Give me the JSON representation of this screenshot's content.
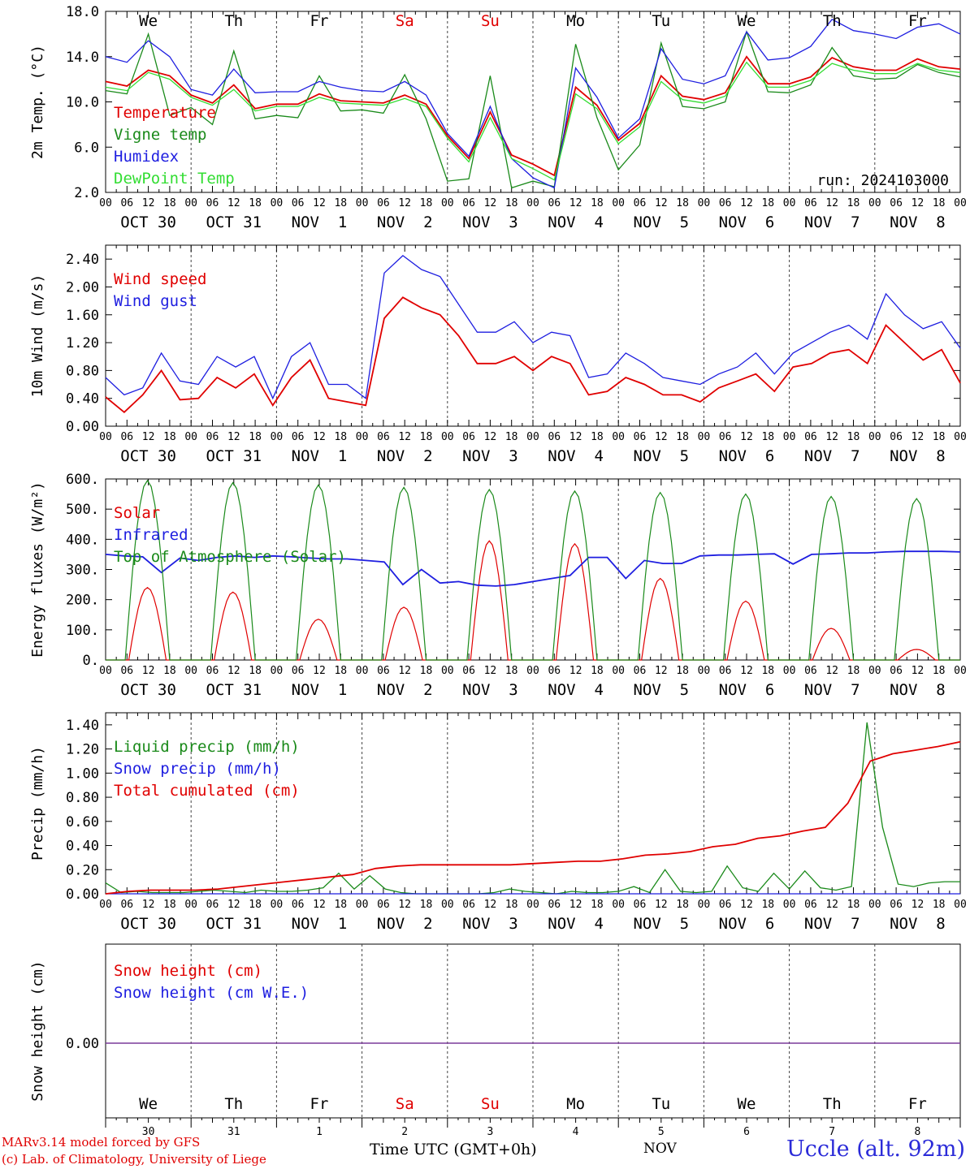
{
  "run_label": "run: 2024103000",
  "footer": {
    "model": "MARv3.14 model forced by GFS",
    "lab": "(c) Lab. of Climatology, University of Liege",
    "time_axis": "Time UTC (GMT+0h)",
    "month": "NOV",
    "station": "Uccle (alt. 92m)"
  },
  "weekdays": [
    "We",
    "Th",
    "Fr",
    "Sa",
    "Su",
    "Mo",
    "Tu",
    "We",
    "Th",
    "Fr"
  ],
  "weekend_flags": [
    false,
    false,
    false,
    true,
    true,
    false,
    false,
    false,
    false,
    false
  ],
  "day_numbers": [
    "30",
    "31",
    "1",
    "2",
    "3",
    "4",
    "5",
    "6",
    "7",
    "8"
  ],
  "date_labels": [
    "OCT 30",
    "OCT 31",
    "NOV  1",
    "NOV  2",
    "NOV  3",
    "NOV  4",
    "NOV  5",
    "NOV  6",
    "NOV  7",
    "NOV  8"
  ],
  "hour_ticks": [
    "00",
    "06",
    "12",
    "18"
  ],
  "hour_tick_end": "00",
  "colors": {
    "red": "#e00000",
    "green": "#1a8a1a",
    "blue": "#1e1ee0",
    "light_green": "#33dd33",
    "purple": "#7a3a9a",
    "grid": "#444444"
  },
  "chart_data": [
    {
      "type": "line",
      "ylabel": "2m Temp. (°C)",
      "ylim": [
        2,
        18
      ],
      "yticks": [
        "2.0",
        "6.0",
        "10.0",
        "14.0",
        "18.0"
      ],
      "x": "hours since Oct 30 00 UTC, every 6h",
      "legend_placement": "left",
      "series": [
        {
          "name": "Temperature",
          "color": "red",
          "values": [
            11.8,
            11.4,
            12.8,
            12.3,
            10.6,
            9.9,
            11.5,
            9.4,
            9.8,
            9.8,
            10.7,
            10.1,
            10.0,
            9.9,
            10.6,
            9.8,
            7.0,
            5.0,
            9.1,
            5.3,
            4.5,
            3.5,
            11.3,
            9.7,
            6.6,
            8.1,
            12.3,
            10.5,
            10.2,
            10.8,
            14.0,
            11.6,
            11.6,
            12.2,
            13.9,
            13.1,
            12.8,
            12.8,
            13.8,
            13.1,
            12.9
          ]
        },
        {
          "name": "Vigne temp",
          "color": "green",
          "values": [
            11.0,
            10.7,
            16.0,
            8.8,
            9.5,
            8.0,
            14.5,
            8.5,
            8.8,
            8.6,
            12.3,
            9.2,
            9.3,
            9.0,
            12.4,
            8.5,
            3.0,
            3.2,
            12.3,
            2.4,
            3.0,
            2.5,
            15.1,
            8.6,
            4.0,
            6.2,
            15.2,
            9.6,
            9.4,
            10.0,
            16.2,
            10.9,
            10.8,
            11.5,
            14.8,
            12.3,
            12.0,
            12.1,
            13.3,
            12.6,
            12.2
          ]
        },
        {
          "name": "Humidex",
          "color": "blue",
          "values": [
            14.0,
            13.5,
            15.4,
            14.0,
            11.1,
            10.6,
            12.9,
            10.8,
            10.9,
            10.9,
            11.8,
            11.3,
            11.0,
            10.9,
            11.8,
            10.6,
            7.2,
            5.2,
            9.6,
            5.0,
            3.3,
            2.4,
            13.0,
            10.4,
            6.8,
            8.5,
            14.7,
            12.0,
            11.6,
            12.3,
            16.2,
            13.7,
            13.9,
            14.9,
            17.3,
            16.3,
            16.0,
            15.6,
            16.6,
            16.9,
            16.0
          ]
        },
        {
          "name": "DewPoint Temp",
          "color": "light_green",
          "values": [
            11.3,
            11.0,
            12.6,
            12.0,
            10.4,
            9.7,
            11.1,
            9.2,
            9.6,
            9.6,
            10.4,
            9.9,
            9.8,
            9.7,
            10.3,
            9.6,
            6.8,
            4.7,
            8.6,
            5.0,
            4.1,
            3.1,
            10.7,
            9.4,
            6.3,
            7.8,
            11.8,
            10.2,
            9.9,
            10.5,
            13.5,
            11.3,
            11.3,
            11.9,
            13.4,
            12.8,
            12.5,
            12.5,
            13.4,
            12.8,
            12.6
          ]
        }
      ]
    },
    {
      "type": "line",
      "ylabel": "10m Wind (m/s)",
      "ylim": [
        0,
        2.6
      ],
      "yticks": [
        "0.00",
        "0.40",
        "0.80",
        "1.20",
        "1.60",
        "2.00",
        "2.40"
      ],
      "legend_placement": "left",
      "series": [
        {
          "name": "Wind speed",
          "color": "red",
          "values": [
            0.42,
            0.2,
            0.45,
            0.8,
            0.38,
            0.4,
            0.7,
            0.55,
            0.75,
            0.3,
            0.7,
            0.95,
            0.4,
            0.35,
            0.3,
            1.55,
            1.85,
            1.7,
            1.6,
            1.3,
            0.9,
            0.9,
            1.0,
            0.8,
            1.0,
            0.9,
            0.45,
            0.5,
            0.7,
            0.6,
            0.45,
            0.45,
            0.35,
            0.55,
            0.65,
            0.75,
            0.5,
            0.85,
            0.9,
            1.05,
            1.1,
            0.9,
            1.45,
            1.2,
            0.95,
            1.1,
            0.62
          ]
        },
        {
          "name": "Wind gust",
          "color": "blue",
          "values": [
            0.7,
            0.45,
            0.55,
            1.05,
            0.65,
            0.6,
            1.0,
            0.85,
            1.0,
            0.4,
            1.0,
            1.2,
            0.6,
            0.6,
            0.4,
            2.2,
            2.45,
            2.25,
            2.15,
            1.75,
            1.35,
            1.35,
            1.5,
            1.2,
            1.35,
            1.3,
            0.7,
            0.75,
            1.05,
            0.9,
            0.7,
            0.65,
            0.6,
            0.75,
            0.85,
            1.05,
            0.75,
            1.05,
            1.2,
            1.35,
            1.45,
            1.25,
            1.9,
            1.6,
            1.4,
            1.5,
            1.12
          ]
        }
      ]
    },
    {
      "type": "line",
      "ylabel": "Energy fluxes (W/m²)",
      "ylim": [
        0,
        600
      ],
      "yticks": [
        "0.",
        "100.",
        "200.",
        "300.",
        "400.",
        "500.",
        "600."
      ],
      "legend_placement": "left",
      "series": [
        {
          "name": "Solar",
          "color": "red",
          "daily_peaks": [
            240,
            225,
            135,
            175,
            395,
            385,
            270,
            195,
            105,
            35
          ]
        },
        {
          "name": "Infrared",
          "color": "blue",
          "values": [
            350,
            345,
            342,
            290,
            338,
            330,
            340,
            345,
            340,
            345,
            342,
            338,
            335,
            335,
            330,
            325,
            250,
            300,
            255,
            260,
            248,
            245,
            250,
            260,
            270,
            280,
            340,
            340,
            270,
            330,
            320,
            320,
            345,
            348,
            348,
            350,
            352,
            318,
            350,
            352,
            355,
            355,
            358,
            360,
            360,
            360,
            358
          ]
        },
        {
          "name": "Top of Atmosphere (Solar)",
          "color": "green",
          "daily_peaks": [
            595,
            588,
            580,
            572,
            565,
            560,
            555,
            550,
            542,
            535
          ]
        }
      ]
    },
    {
      "type": "line",
      "ylabel": "Precip (mm/h)",
      "ylim": [
        0,
        1.5
      ],
      "yticks": [
        "0.00",
        "0.20",
        "0.40",
        "0.60",
        "0.80",
        "1.00",
        "1.20",
        "1.40"
      ],
      "legend_placement": "left",
      "series": [
        {
          "name": "Liquid precip (mm/h)",
          "color": "green",
          "values": [
            0.09,
            0.01,
            0.02,
            0.01,
            0.01,
            0.01,
            0.02,
            0.03,
            0.02,
            0.01,
            0.03,
            0.02,
            0.02,
            0.03,
            0.05,
            0.17,
            0.04,
            0.15,
            0.04,
            0.01,
            0.0,
            0.0,
            0.0,
            0.0,
            0.0,
            0.01,
            0.04,
            0.02,
            0.01,
            0.0,
            0.02,
            0.01,
            0.01,
            0.02,
            0.06,
            0.01,
            0.2,
            0.02,
            0.01,
            0.02,
            0.23,
            0.05,
            0.02,
            0.17,
            0.04,
            0.19,
            0.05,
            0.03,
            0.06,
            1.42,
            0.55,
            0.08,
            0.06,
            0.09,
            0.1,
            0.1
          ]
        },
        {
          "name": "Snow precip (mm/h)",
          "color": "blue",
          "values": [
            0,
            0
          ]
        },
        {
          "name": "Total cumulated (cm)",
          "color": "red",
          "values": [
            0.0,
            0.02,
            0.03,
            0.03,
            0.03,
            0.04,
            0.06,
            0.08,
            0.1,
            0.12,
            0.14,
            0.16,
            0.21,
            0.23,
            0.24,
            0.24,
            0.24,
            0.24,
            0.24,
            0.25,
            0.26,
            0.27,
            0.27,
            0.29,
            0.32,
            0.33,
            0.35,
            0.39,
            0.41,
            0.46,
            0.48,
            0.52,
            0.55,
            0.75,
            1.1,
            1.16,
            1.19,
            1.22,
            1.26
          ]
        }
      ]
    },
    {
      "type": "line",
      "ylabel": "Snow height (cm)",
      "yticks": [
        "0.00"
      ],
      "legend_placement": "left",
      "series": [
        {
          "name": "Snow height (cm)",
          "color": "red",
          "values": [
            0,
            0
          ]
        },
        {
          "name": "Snow height (cm W.E.)",
          "color": "blue",
          "values": [
            0,
            0
          ]
        }
      ]
    }
  ]
}
